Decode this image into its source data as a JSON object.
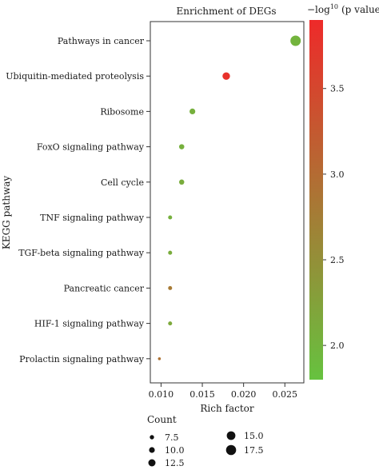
{
  "chart_data": {
    "type": "scatter",
    "title": "Enrichment of DEGs",
    "xlabel": "Rich factor",
    "ylabel": "KEGG pathway",
    "xlim": [
      0.0087,
      0.0273
    ],
    "xticks": [
      "0.010",
      "0.015",
      "0.020",
      "0.025"
    ],
    "xtick_values": [
      0.01,
      0.015,
      0.02,
      0.025
    ],
    "grid": false,
    "categories": [
      "Pathways in cancer",
      "Ubiquitin-mediated proteolysis",
      "Ribosome",
      "FoxO signaling pathway",
      "Cell cycle",
      "TNF signaling pathway",
      "TGF-beta signaling pathway",
      "Pancreatic cancer",
      "HIF-1 signaling pathway",
      "Prolactin signaling pathway"
    ],
    "points": [
      {
        "pathway": "Pathways in cancer",
        "rich_factor": 0.0263,
        "count": 18,
        "neg_log10_p": 2.0
      },
      {
        "pathway": "Ubiquitin-mediated proteolysis",
        "rich_factor": 0.0179,
        "count": 13,
        "neg_log10_p": 3.8
      },
      {
        "pathway": "Ribosome",
        "rich_factor": 0.0138,
        "count": 10,
        "neg_log10_p": 2.05
      },
      {
        "pathway": "FoxO signaling pathway",
        "rich_factor": 0.0125,
        "count": 9,
        "neg_log10_p": 2.05
      },
      {
        "pathway": "Cell cycle",
        "rich_factor": 0.0125,
        "count": 9,
        "neg_log10_p": 2.1
      },
      {
        "pathway": "TNF signaling pathway",
        "rich_factor": 0.0111,
        "count": 7,
        "neg_log10_p": 2.05
      },
      {
        "pathway": "TGF-beta signaling pathway",
        "rich_factor": 0.0111,
        "count": 7,
        "neg_log10_p": 2.1
      },
      {
        "pathway": "Pancreatic cancer",
        "rich_factor": 0.0111,
        "count": 7,
        "neg_log10_p": 2.8
      },
      {
        "pathway": "HIF-1 signaling pathway",
        "rich_factor": 0.0111,
        "count": 7,
        "neg_log10_p": 2.15
      },
      {
        "pathway": "Prolactin signaling pathway",
        "rich_factor": 0.0098,
        "count": 5,
        "neg_log10_p": 2.9
      }
    ],
    "colorbar": {
      "label_prefix": "−log",
      "label_super": "10",
      "label_suffix": "(p value)",
      "range": [
        1.8,
        3.9
      ],
      "ticks": [
        "2.0",
        "2.5",
        "3.0",
        "3.5"
      ],
      "tick_values": [
        2.0,
        2.5,
        3.0,
        3.5
      ],
      "low_color": "#66c23f",
      "high_color": "#ee2a2a",
      "placement": "right"
    },
    "size_legend": {
      "title": "Count",
      "entries": [
        {
          "label": "7.5",
          "value": 7.5
        },
        {
          "label": "10.0",
          "value": 10.0
        },
        {
          "label": "12.5",
          "value": 12.5
        },
        {
          "label": "15.0",
          "value": 15.0
        },
        {
          "label": "17.5",
          "value": 17.5
        }
      ],
      "placement": "bottom"
    }
  }
}
